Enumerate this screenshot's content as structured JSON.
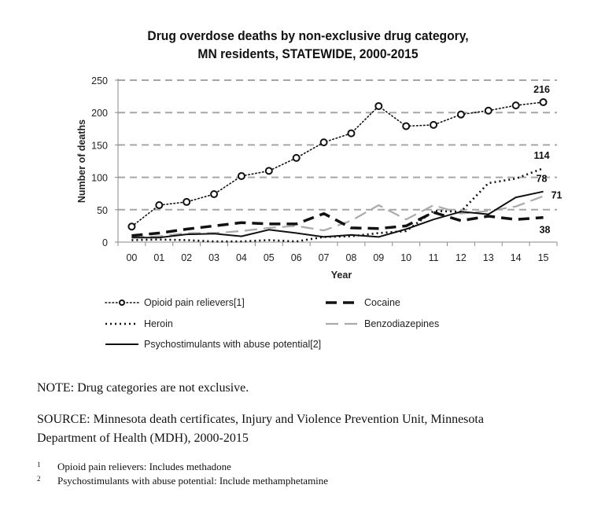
{
  "chart_data": {
    "type": "line",
    "title": "Drug overdose deaths by non-exclusive drug category,",
    "subtitle": "MN residents, STATEWIDE, 2000-2015",
    "xlabel": "Year",
    "ylabel": "Number of deaths",
    "ylim": [
      0,
      250
    ],
    "yticks": [
      "0",
      "50",
      "100",
      "150",
      "200",
      "250"
    ],
    "grid": true,
    "categories": [
      "00",
      "01",
      "02",
      "03",
      "04",
      "05",
      "06",
      "07",
      "08",
      "09",
      "10",
      "11",
      "12",
      "13",
      "14",
      "15"
    ],
    "series": [
      {
        "name": "Opioid pain relievers[1]",
        "style": "dotted-circle",
        "color": "#111111",
        "values": [
          24,
          57,
          62,
          74,
          102,
          110,
          130,
          154,
          168,
          210,
          179,
          181,
          197,
          203,
          211,
          216
        ],
        "end_label": "216"
      },
      {
        "name": "Cocaine",
        "style": "dashed-bold",
        "color": "#111111",
        "values": [
          10,
          14,
          20,
          25,
          30,
          28,
          28,
          44,
          22,
          21,
          25,
          46,
          33,
          40,
          35,
          38
        ],
        "end_label": "38"
      },
      {
        "name": "Heroin",
        "style": "dotted",
        "color": "#111111",
        "values": [
          3,
          4,
          3,
          1,
          1,
          3,
          1,
          8,
          9,
          14,
          17,
          48,
          47,
          91,
          98,
          114
        ],
        "end_label": "114"
      },
      {
        "name": "Benzodiazepines",
        "style": "dashed-gray",
        "color": "#aaaaaa",
        "values": [
          7,
          9,
          14,
          14,
          17,
          22,
          25,
          18,
          33,
          57,
          35,
          57,
          44,
          48,
          55,
          71
        ],
        "end_label": "71"
      },
      {
        "name": "Psychostimulants with abuse potential[2]",
        "style": "solid",
        "color": "#111111",
        "values": [
          7,
          7,
          12,
          13,
          9,
          19,
          14,
          8,
          11,
          8,
          20,
          35,
          47,
          43,
          69,
          78
        ],
        "end_label": "78"
      }
    ],
    "legend_position": "bottom"
  },
  "notes": {
    "note": "NOTE: Drug categories are not exclusive.",
    "source_line1": "SOURCE: Minnesota death certificates, Injury and Violence Prevention Unit, Minnesota",
    "source_line2": "Department of Health (MDH), 2000-2015",
    "footnotes": [
      {
        "mark": "1",
        "text": "Opioid pain relievers: Includes methadone"
      },
      {
        "mark": "2",
        "text": "Psychostimulants with abuse potential: Include methamphetamine"
      }
    ]
  }
}
